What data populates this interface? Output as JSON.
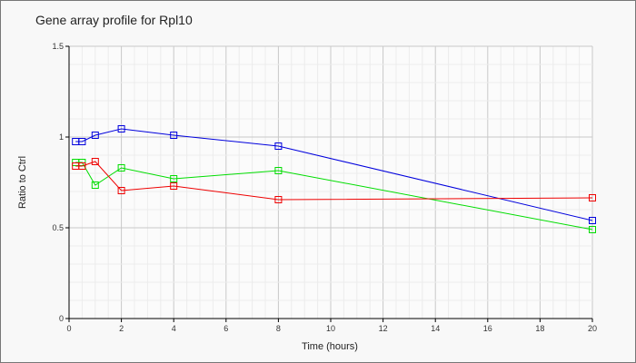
{
  "chart_data": {
    "type": "line",
    "title": "Gene array profile for Rpl10",
    "xlabel": "Time (hours)",
    "ylabel": "Ratio to Ctrl",
    "xlim": [
      0,
      20
    ],
    "ylim": [
      0,
      1.5
    ],
    "xticks": [
      0,
      2,
      4,
      6,
      8,
      10,
      12,
      14,
      16,
      18,
      20
    ],
    "yticks": [
      0,
      0.5,
      1,
      1.5
    ],
    "ytick_labels": [
      "0",
      "0.5",
      "1",
      "1.5"
    ],
    "grid": true,
    "x": [
      0.25,
      0.5,
      1,
      2,
      4,
      8,
      20
    ],
    "series": [
      {
        "name": "blue",
        "color": "#0000dd",
        "values": [
          0.975,
          0.975,
          1.01,
          1.045,
          1.01,
          0.95,
          0.54
        ]
      },
      {
        "name": "green",
        "color": "#00dd00",
        "values": [
          0.86,
          0.86,
          0.735,
          0.83,
          0.77,
          0.815,
          0.49
        ]
      },
      {
        "name": "red",
        "color": "#ee0000",
        "values": [
          0.84,
          0.84,
          0.865,
          0.705,
          0.73,
          0.655,
          0.665
        ]
      }
    ]
  }
}
